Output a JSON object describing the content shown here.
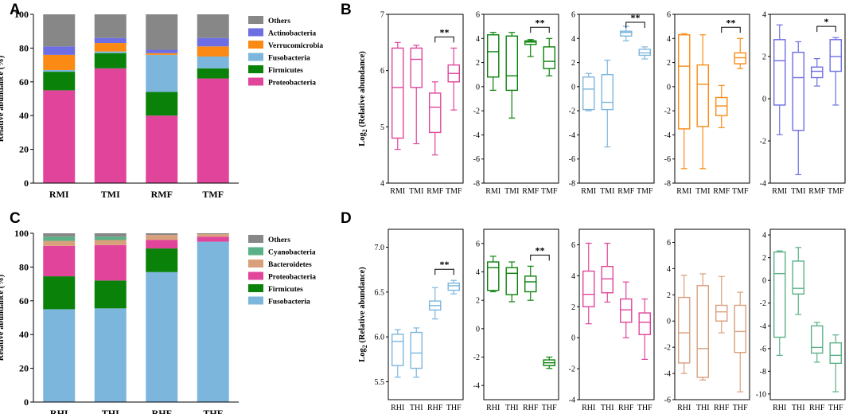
{
  "panels": {
    "A": "A",
    "B": "B",
    "C": "C",
    "D": "D"
  },
  "labels": {
    "stack_ylabel": "Relative abundance (%)",
    "box_ylabel": "Log",
    "box_ylabel_sub": "2",
    "box_ylabel_tail": " (Relative abundance)"
  },
  "chart_data": [
    {
      "id": "A",
      "type": "bar",
      "stacked": true,
      "ylabel": "Relative abundance (%)",
      "ylim": [
        0,
        100
      ],
      "yticks": [
        0,
        20,
        40,
        60,
        80,
        100
      ],
      "categories": [
        "RMI",
        "TMI",
        "RMF",
        "TMF"
      ],
      "series": [
        {
          "name": "Proteobacteria",
          "color": "#e0459b",
          "values": [
            55,
            68,
            40,
            62
          ]
        },
        {
          "name": "Firmicutes",
          "color": "#0a820a",
          "values": [
            11,
            9,
            14,
            6
          ]
        },
        {
          "name": "Fusobacteria",
          "color": "#7db6dd",
          "values": [
            1,
            1,
            22,
            7
          ]
        },
        {
          "name": "Verrucomicrobia",
          "color": "#fb8a14",
          "values": [
            9,
            5,
            1,
            6
          ]
        },
        {
          "name": "Actinobacteria",
          "color": "#6d6ee3",
          "values": [
            5,
            3,
            2,
            5
          ]
        },
        {
          "name": "Others",
          "color": "#878787",
          "values": [
            19,
            14,
            21,
            14
          ]
        }
      ],
      "legend": [
        "Others",
        "Actinobacteria",
        "Verrucomicrobia",
        "Fusobacteria",
        "Firmicutes",
        "Proteobacteria"
      ]
    },
    {
      "id": "C",
      "type": "bar",
      "stacked": true,
      "ylabel": "Relative abundance (%)",
      "ylim": [
        0,
        100
      ],
      "yticks": [
        0,
        20,
        40,
        60,
        80,
        100
      ],
      "categories": [
        "RHI",
        "THI",
        "RHF",
        "THF"
      ],
      "series": [
        {
          "name": "Fusobacteria",
          "color": "#7db6dd",
          "values": [
            55,
            55.5,
            77,
            95
          ]
        },
        {
          "name": "Firmicutes",
          "color": "#0a820a",
          "values": [
            19.5,
            16.5,
            14,
            0
          ]
        },
        {
          "name": "Proteobacteria",
          "color": "#e0459b",
          "values": [
            18,
            21,
            5,
            3
          ]
        },
        {
          "name": "Bacteroidetes",
          "color": "#d9a07c",
          "values": [
            3,
            3,
            3,
            1.5
          ]
        },
        {
          "name": "Cyanobacteria",
          "color": "#5bb187",
          "values": [
            2.5,
            2,
            0,
            0
          ]
        },
        {
          "name": "Others",
          "color": "#878787",
          "values": [
            2,
            2,
            1,
            0.5
          ]
        }
      ],
      "legend": [
        "Others",
        "Cyanobacteria",
        "Bacteroidetes",
        "Proteobacteria",
        "Firmicutes",
        "Fusobacteria"
      ]
    },
    {
      "id": "B1",
      "type": "box",
      "taxon": "Proteobacteria",
      "color": "#e0459b",
      "categories": [
        "RMI",
        "TMI",
        "RMF",
        "TMF"
      ],
      "ylim": [
        4,
        7
      ],
      "yticks": [
        4,
        5,
        6,
        7
      ],
      "boxes": [
        {
          "min": 4.6,
          "q1": 4.8,
          "med": 5.7,
          "q3": 6.4,
          "max": 6.5
        },
        {
          "min": 4.7,
          "q1": 5.7,
          "med": 6.2,
          "q3": 6.4,
          "max": 6.45
        },
        {
          "min": 4.5,
          "q1": 4.9,
          "med": 5.35,
          "q3": 5.6,
          "max": 5.8
        },
        {
          "min": 5.3,
          "q1": 5.8,
          "med": 5.95,
          "q3": 6.1,
          "max": 6.4
        }
      ],
      "sig": {
        "from": 2,
        "to": 3,
        "label": "**"
      }
    },
    {
      "id": "B2",
      "type": "box",
      "taxon": "Firmicutes",
      "color": "#0a820a",
      "categories": [
        "RMI",
        "TMI",
        "RMF",
        "TMF"
      ],
      "ylim": [
        -8,
        6
      ],
      "yticks": [
        -8,
        -6,
        -4,
        -2,
        0,
        2,
        4,
        6
      ],
      "boxes": [
        {
          "min": -0.3,
          "q1": 0.8,
          "med": 2.9,
          "q3": 4.3,
          "max": 4.5
        },
        {
          "min": -2.6,
          "q1": -0.3,
          "med": 0.9,
          "q3": 4.2,
          "max": 4.5
        },
        {
          "min": 2.5,
          "q1": 3.5,
          "med": 3.7,
          "q3": 3.8,
          "max": 3.9
        },
        {
          "min": 0.9,
          "q1": 1.5,
          "med": 2.1,
          "q3": 3.3,
          "max": 4.0
        }
      ],
      "sig": {
        "from": 2,
        "to": 3,
        "label": "**"
      }
    },
    {
      "id": "B3",
      "type": "box",
      "taxon": "Fusobacteria",
      "color": "#7db6dd",
      "categories": [
        "RMI",
        "TMI",
        "RMF",
        "TMF"
      ],
      "ylim": [
        -8,
        6
      ],
      "yticks": [
        -8,
        -6,
        -4,
        -2,
        0,
        2,
        4,
        6
      ],
      "boxes": [
        {
          "min": -2.0,
          "q1": -1.9,
          "med": -0.2,
          "q3": 0.8,
          "max": 1.1
        },
        {
          "min": -5.0,
          "q1": -1.9,
          "med": -1.3,
          "q3": 1.0,
          "max": 2.2
        },
        {
          "min": 3.8,
          "q1": 4.2,
          "med": 4.5,
          "q3": 4.6,
          "max": 5.0
        },
        {
          "min": 2.3,
          "q1": 2.6,
          "med": 2.8,
          "q3": 3.1,
          "max": 3.3
        }
      ],
      "sig": {
        "from": 2,
        "to": 3,
        "label": "**"
      }
    },
    {
      "id": "B4",
      "type": "box",
      "taxon": "Verrucomicrobia",
      "color": "#fb8a14",
      "categories": [
        "RMI",
        "TMI",
        "RMF",
        "TMF"
      ],
      "ylim": [
        -8,
        6
      ],
      "yticks": [
        -8,
        -6,
        -4,
        -2,
        0,
        2,
        4,
        6
      ],
      "boxes": [
        {
          "min": -6.8,
          "q1": -3.5,
          "med": 1.7,
          "q3": 4.3,
          "max": 4.4
        },
        {
          "min": -6.8,
          "q1": -3.3,
          "med": 0.2,
          "q3": 1.8,
          "max": 4.3
        },
        {
          "min": -3.4,
          "q1": -2.4,
          "med": -1.6,
          "q3": -0.9,
          "max": 0.1
        },
        {
          "min": 1.5,
          "q1": 1.9,
          "med": 2.4,
          "q3": 2.8,
          "max": 4.0
        }
      ],
      "sig": {
        "from": 2,
        "to": 3,
        "label": "**"
      }
    },
    {
      "id": "B5",
      "type": "box",
      "taxon": "Actinobacteria",
      "color": "#6d6ee3",
      "categories": [
        "RMI",
        "TMI",
        "RMF",
        "TMF"
      ],
      "ylim": [
        -4,
        4
      ],
      "yticks": [
        -4,
        -2,
        0,
        2,
        4
      ],
      "boxes": [
        {
          "min": -1.7,
          "q1": -0.3,
          "med": 1.8,
          "q3": 2.8,
          "max": 3.5
        },
        {
          "min": -3.6,
          "q1": -1.5,
          "med": 1.0,
          "q3": 2.2,
          "max": 2.7
        },
        {
          "min": 0.6,
          "q1": 1.0,
          "med": 1.3,
          "q3": 1.5,
          "max": 1.9
        },
        {
          "min": -0.3,
          "q1": 1.3,
          "med": 2.0,
          "q3": 2.8,
          "max": 2.9
        }
      ],
      "sig": {
        "from": 2,
        "to": 3,
        "label": "*"
      }
    },
    {
      "id": "D1",
      "type": "box",
      "taxon": "Fusobacteria",
      "color": "#7db6dd",
      "categories": [
        "RHI",
        "THI",
        "RHF",
        "THF"
      ],
      "ylim": [
        5.3,
        7.2
      ],
      "yticks": [
        5.5,
        6.0,
        6.5,
        7.0
      ],
      "boxes": [
        {
          "min": 5.55,
          "q1": 5.68,
          "med": 5.95,
          "q3": 6.03,
          "max": 6.08
        },
        {
          "min": 5.55,
          "q1": 5.65,
          "med": 5.82,
          "q3": 6.05,
          "max": 6.1
        },
        {
          "min": 6.2,
          "q1": 6.3,
          "med": 6.35,
          "q3": 6.4,
          "max": 6.55
        },
        {
          "min": 6.48,
          "q1": 6.52,
          "med": 6.57,
          "q3": 6.6,
          "max": 6.63
        }
      ],
      "sig": {
        "from": 2,
        "to": 3,
        "label": "**"
      }
    },
    {
      "id": "D2",
      "type": "box",
      "taxon": "Firmicutes",
      "color": "#0a820a",
      "categories": [
        "RHI",
        "THI",
        "RHF",
        "THF"
      ],
      "ylim": [
        -5,
        7
      ],
      "yticks": [
        -4,
        -2,
        0,
        2,
        4,
        6
      ],
      "boxes": [
        {
          "min": 2.6,
          "q1": 2.7,
          "med": 4.3,
          "q3": 4.7,
          "max": 5.1
        },
        {
          "min": 1.9,
          "q1": 2.4,
          "med": 3.9,
          "q3": 4.3,
          "max": 4.7
        },
        {
          "min": 2.0,
          "q1": 2.6,
          "med": 3.3,
          "q3": 3.7,
          "max": 4.4
        },
        {
          "min": -2.8,
          "q1": -2.6,
          "med": -2.4,
          "q3": -2.2,
          "max": -2.0
        }
      ],
      "sig": {
        "from": 2,
        "to": 3,
        "label": "**"
      }
    },
    {
      "id": "D3",
      "type": "box",
      "taxon": "Proteobacteria",
      "color": "#e0459b",
      "categories": [
        "RHI",
        "THI",
        "RHF",
        "THF"
      ],
      "ylim": [
        -4,
        7
      ],
      "yticks": [
        -4,
        -2,
        0,
        2,
        4,
        6
      ],
      "boxes": [
        {
          "min": 0.9,
          "q1": 2.0,
          "med": 2.8,
          "q3": 4.3,
          "max": 6.1
        },
        {
          "min": 2.3,
          "q1": 2.9,
          "med": 3.8,
          "q3": 4.6,
          "max": 6.1
        },
        {
          "min": 0.0,
          "q1": 1.0,
          "med": 1.8,
          "q3": 2.5,
          "max": 3.6
        },
        {
          "min": -1.4,
          "q1": 0.2,
          "med": 1.0,
          "q3": 1.6,
          "max": 2.5
        }
      ],
      "sig": null
    },
    {
      "id": "D4",
      "type": "box",
      "taxon": "Bacteroidetes",
      "color": "#d9a07c",
      "categories": [
        "RHI",
        "THI",
        "RHF",
        "THF"
      ],
      "ylim": [
        -6,
        7
      ],
      "yticks": [
        -6,
        -4,
        -2,
        0,
        2,
        4,
        6
      ],
      "boxes": [
        {
          "min": -4.0,
          "q1": -3.2,
          "med": -0.9,
          "q3": 1.8,
          "max": 3.5
        },
        {
          "min": -4.5,
          "q1": -4.3,
          "med": -2.1,
          "q3": 2.7,
          "max": 3.6
        },
        {
          "min": -0.9,
          "q1": 0.0,
          "med": 0.7,
          "q3": 1.2,
          "max": 3.4
        },
        {
          "min": -5.4,
          "q1": -2.4,
          "med": -0.8,
          "q3": 1.2,
          "max": 2.2
        }
      ],
      "sig": null
    },
    {
      "id": "D5",
      "type": "box",
      "taxon": "Cyanobacteria",
      "color": "#5bb187",
      "categories": [
        "RHI",
        "THI",
        "RHF",
        "THF"
      ],
      "ylim": [
        -10.5,
        4.5
      ],
      "yticks": [
        -10,
        -8,
        -6,
        -4,
        -2,
        0,
        2,
        4
      ],
      "boxes": [
        {
          "min": -6.6,
          "q1": -5.0,
          "med": 0.6,
          "q3": 2.5,
          "max": 2.6
        },
        {
          "min": -3.0,
          "q1": -1.2,
          "med": -0.7,
          "q3": 1.7,
          "max": 2.9
        },
        {
          "min": -7.2,
          "q1": -6.4,
          "med": -5.9,
          "q3": -4.0,
          "max": -3.7
        },
        {
          "min": -9.8,
          "q1": -7.3,
          "med": -6.6,
          "q3": -5.5,
          "max": -4.8
        }
      ],
      "sig": null
    }
  ]
}
